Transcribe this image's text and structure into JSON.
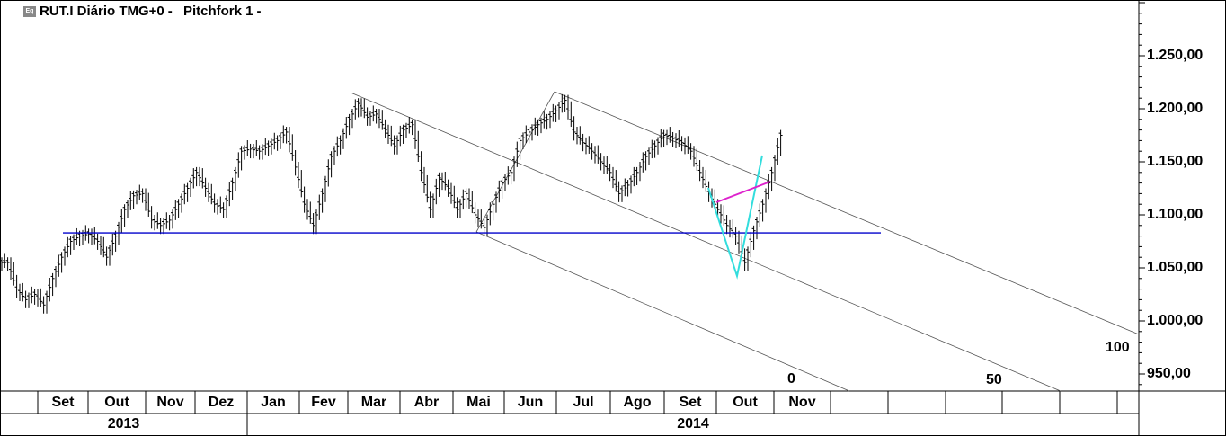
{
  "header": {
    "symbol": "RUT.I",
    "title": "RUT.I Diário TMG+0",
    "separator": "-",
    "study": "Pitchfork 1",
    "icon": "chart-window-icon"
  },
  "chart_data": {
    "type": "ohlc-bar",
    "instrument": "RUT.I",
    "interval": "Diário",
    "y_axis": {
      "ticks": [
        1250,
        1200,
        1150,
        1100,
        1050,
        1000,
        950
      ],
      "tick_labels": [
        "1.250,00",
        "1.200,00",
        "1.150,00",
        "1.100,00",
        "1.050,00",
        "1.000,00",
        "950,00"
      ],
      "ylim": [
        935,
        1300
      ],
      "position": "right"
    },
    "x_axis": {
      "months": [
        "Set",
        "Out",
        "Nov",
        "Dez",
        "Jan",
        "Fev",
        "Mar",
        "Abr",
        "Mai",
        "Jun",
        "Jul",
        "Ago",
        "Set",
        "Out",
        "Nov",
        "",
        "",
        "",
        "",
        "",
        ""
      ],
      "years": [
        "2013",
        "2014"
      ]
    },
    "closes": [
      1055,
      1030,
      1020,
      1025,
      1015,
      1040,
      1060,
      1075,
      1080,
      1082,
      1075,
      1060,
      1080,
      1105,
      1118,
      1120,
      1095,
      1090,
      1095,
      1110,
      1125,
      1140,
      1125,
      1110,
      1105,
      1130,
      1160,
      1162,
      1160,
      1165,
      1170,
      1178,
      1145,
      1110,
      1090,
      1120,
      1155,
      1170,
      1190,
      1205,
      1192,
      1195,
      1180,
      1165,
      1180,
      1185,
      1140,
      1105,
      1135,
      1125,
      1105,
      1120,
      1100,
      1088,
      1110,
      1130,
      1140,
      1170,
      1178,
      1185,
      1190,
      1198,
      1208,
      1178,
      1168,
      1160,
      1150,
      1140,
      1120,
      1128,
      1140,
      1155,
      1165,
      1175,
      1172,
      1168,
      1160,
      1140,
      1120,
      1105,
      1090,
      1080,
      1055,
      1085,
      1110,
      1140,
      1175
    ],
    "support_line": {
      "price": 1083,
      "color": "#0000cc"
    },
    "pitchfork": {
      "name": "Pitchfork 1",
      "level_labels": [
        "0",
        "50",
        "100"
      ],
      "color": "#555555"
    },
    "pattern_lines": {
      "v_color": "#33dddd",
      "neckline_color": "#dd22cc"
    },
    "grid": false
  }
}
